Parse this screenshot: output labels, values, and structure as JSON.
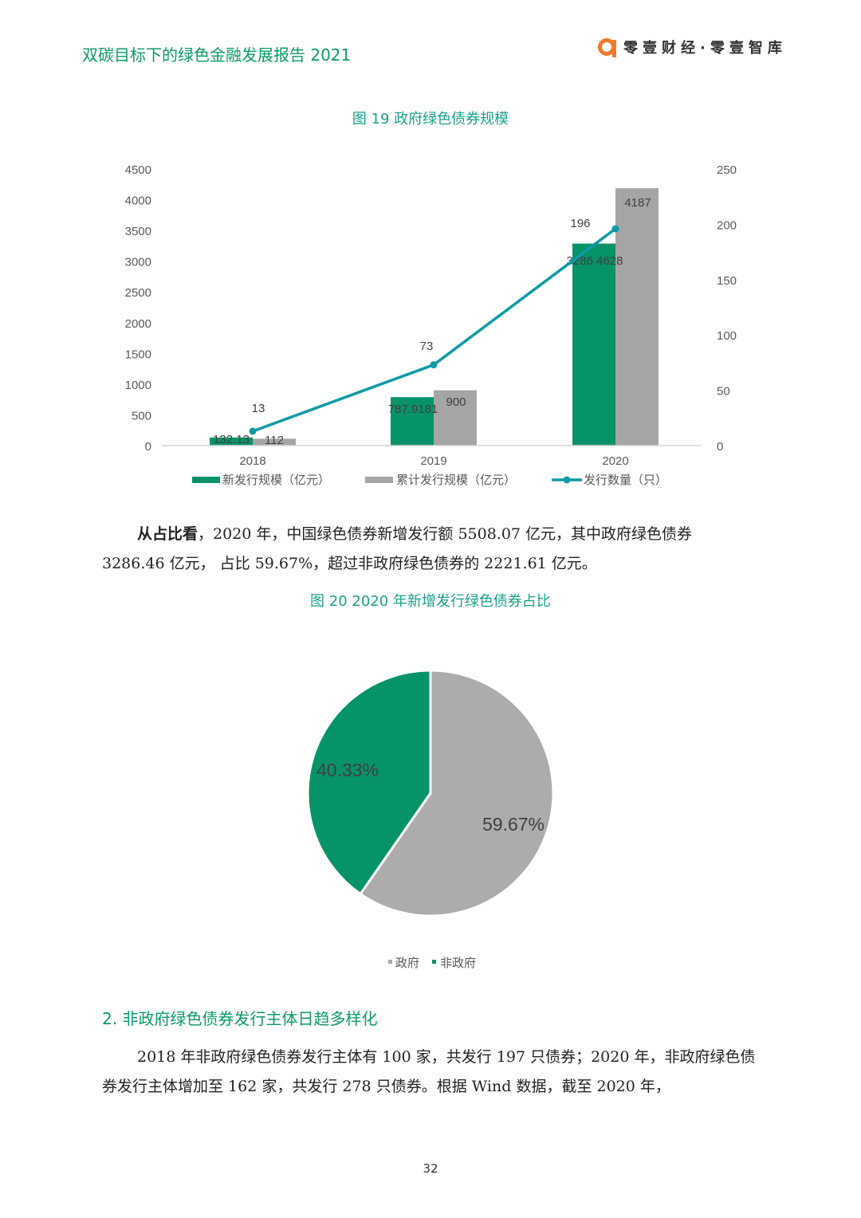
{
  "header": {
    "title": "双碳目标下的绿色金融发展报告 2021",
    "logo_text": "零壹财经·零壹智库"
  },
  "figure19": {
    "title": "图 19  政府绿色债券规模"
  },
  "figure20": {
    "title": "图 20 2020 年新增发行绿色债券占比"
  },
  "paragraph1": {
    "lead": "从占比看",
    "text": "，2020 年，中国绿色债券新增发行额 5508.07 亿元，其中政府绿色债券 3286.46 亿元， 占比 59.67%，超过非政府绿色债券的 2221.61 亿元。"
  },
  "section": {
    "title": "2. 非政府绿色债券发行主体日趋多样化"
  },
  "paragraph2": {
    "text": "2018 年非政府绿色债券发行主体有 100 家，共发行 197 只债券；2020 年，非政府绿色债券发行主体增加至 162 家，共发行 278 只债券。根据 Wind 数据，截至 2020 年，"
  },
  "page_number": "32",
  "chart_data": [
    {
      "type": "bar+line",
      "categories": [
        "2018",
        "2019",
        "2020"
      ],
      "series": [
        {
          "name": "新发行规模（亿元）",
          "type": "bar",
          "axis": "left",
          "values": [
            132.13,
            787.9181,
            3286.4628
          ],
          "labels": [
            "132.13",
            "787.9181",
            "3286.4628"
          ],
          "color": "#07936a"
        },
        {
          "name": "累计发行规模（亿元）",
          "type": "bar",
          "axis": "left",
          "values": [
            112,
            900,
            4187
          ],
          "labels": [
            "112",
            "900",
            "4187"
          ],
          "color": "#a5a5a5"
        },
        {
          "name": "发行数量（只）",
          "type": "line",
          "axis": "right",
          "values": [
            13,
            73,
            196
          ],
          "labels": [
            "13",
            "73",
            "196"
          ],
          "color": "#0e9aa7"
        }
      ],
      "ylim_left": [
        0,
        4500
      ],
      "yticks_left": [
        0,
        500,
        1000,
        1500,
        2000,
        2500,
        3000,
        3500,
        4000,
        4500
      ],
      "ylim_right": [
        0,
        250
      ],
      "yticks_right": [
        0,
        50,
        100,
        150,
        200,
        250
      ],
      "legend": "bottom",
      "grid": false
    },
    {
      "type": "pie",
      "slices": [
        {
          "name": "政府",
          "value": 59.67,
          "label": "59.67%",
          "color": "#aeabab"
        },
        {
          "name": "非政府",
          "value": 40.33,
          "label": "40.33%",
          "color": "#07936a"
        }
      ],
      "legend": "bottom"
    }
  ]
}
